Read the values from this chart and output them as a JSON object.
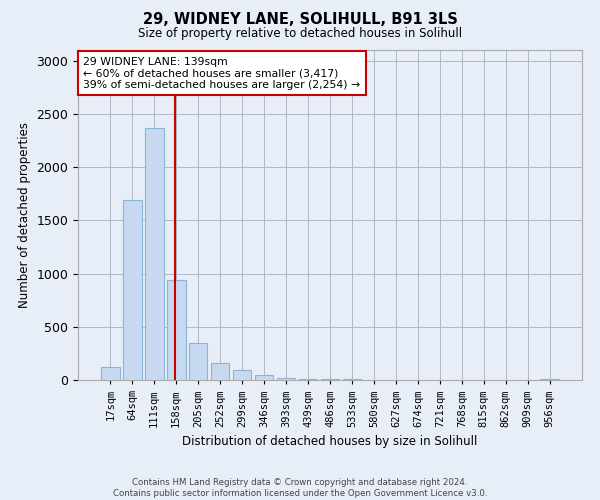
{
  "title1": "29, WIDNEY LANE, SOLIHULL, B91 3LS",
  "title2": "Size of property relative to detached houses in Solihull",
  "xlabel": "Distribution of detached houses by size in Solihull",
  "ylabel": "Number of detached properties",
  "footer1": "Contains HM Land Registry data © Crown copyright and database right 2024.",
  "footer2": "Contains public sector information licensed under the Open Government Licence v3.0.",
  "categories": [
    "17sqm",
    "64sqm",
    "111sqm",
    "158sqm",
    "205sqm",
    "252sqm",
    "299sqm",
    "346sqm",
    "393sqm",
    "439sqm",
    "486sqm",
    "533sqm",
    "580sqm",
    "627sqm",
    "674sqm",
    "721sqm",
    "768sqm",
    "815sqm",
    "862sqm",
    "909sqm",
    "956sqm"
  ],
  "values": [
    120,
    1690,
    2370,
    940,
    350,
    160,
    90,
    50,
    20,
    10,
    5,
    5,
    3,
    2,
    1,
    1,
    0,
    0,
    0,
    0,
    5
  ],
  "bar_color": "#c6d9f0",
  "bar_edge_color": "#8ab4d8",
  "vline_color": "#cc0000",
  "vline_index": 2.93,
  "annotation_text": "29 WIDNEY LANE: 139sqm\n← 60% of detached houses are smaller (3,417)\n39% of semi-detached houses are larger (2,254) →",
  "annotation_box_color": "white",
  "annotation_box_edge_color": "#cc0000",
  "ylim": [
    0,
    3100
  ],
  "yticks": [
    0,
    500,
    1000,
    1500,
    2000,
    2500,
    3000
  ],
  "bg_color": "#e8eef7",
  "plot_bg_color": "#e8eef7",
  "grid_color": "#b0b8c8"
}
